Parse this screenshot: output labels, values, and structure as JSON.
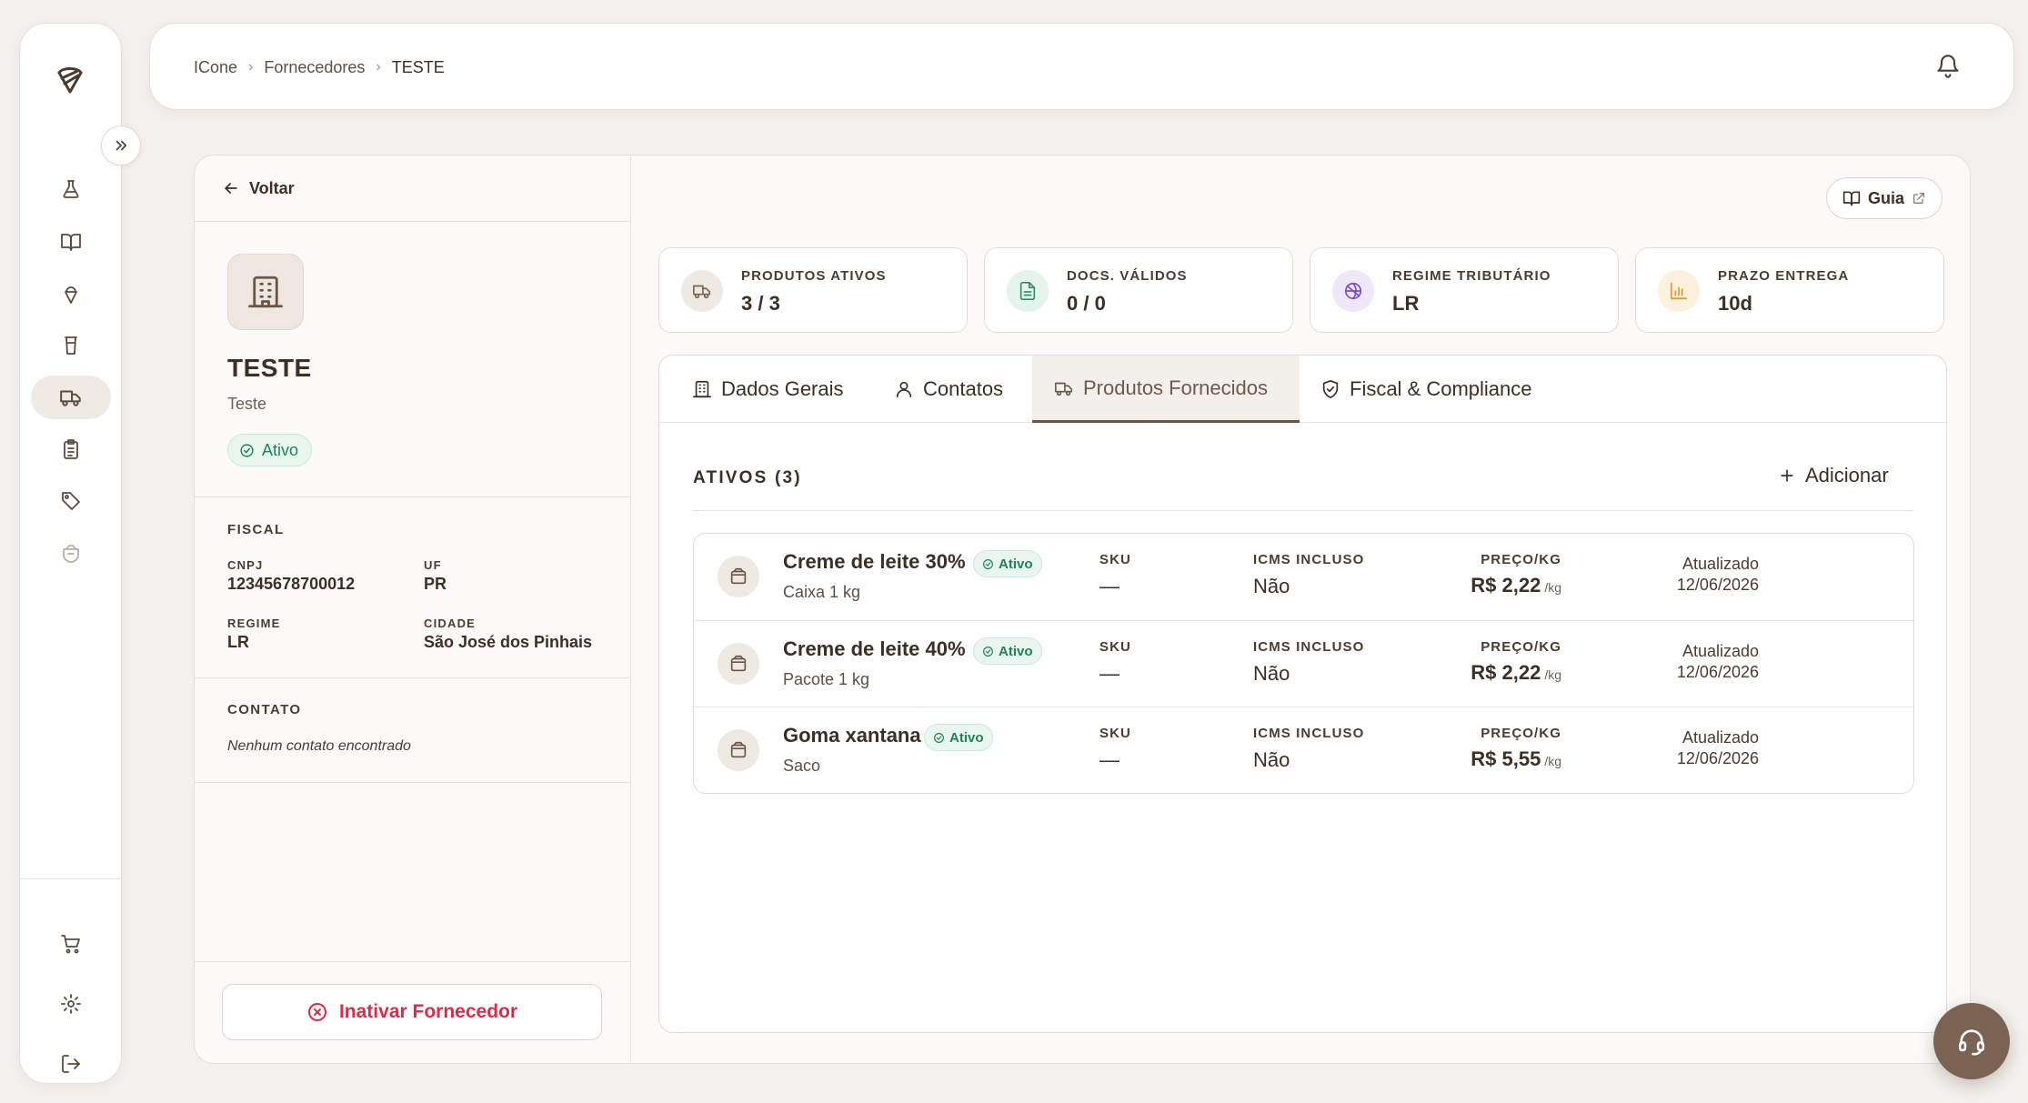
{
  "breadcrumb": {
    "items": [
      "ICone",
      "Fornecedores"
    ],
    "current": "TESTE"
  },
  "supplier": {
    "back_label": "Voltar",
    "name": "TESTE",
    "subtitle": "Teste",
    "status": "Ativo",
    "fiscal": {
      "title": "FISCAL",
      "cnpj_label": "CNPJ",
      "cnpj": "12345678700012",
      "uf_label": "UF",
      "uf": "PR",
      "regime_label": "REGIME",
      "regime": "LR",
      "cidade_label": "CIDADE",
      "cidade": "São José dos Pinhais"
    },
    "contato": {
      "title": "CONTATO",
      "empty": "Nenhum contato encontrado"
    },
    "inactivate_label": "Inativar Fornecedor"
  },
  "guide_label": "Guia",
  "kpis": [
    {
      "label": "PRODUTOS ATIVOS",
      "value": "3 / 3",
      "icon": "truck-icon",
      "color": "#7a6352"
    },
    {
      "label": "DOCS. VÁLIDOS",
      "value": "0 / 0",
      "icon": "document-icon",
      "color": "#2f8f62"
    },
    {
      "label": "REGIME TRIBUTÁRIO",
      "value": "LR",
      "icon": "globe-icon",
      "color": "#7b4bd6"
    },
    {
      "label": "PRAZO ENTREGA",
      "value": "10d",
      "icon": "bar-chart-icon",
      "color": "#d99a2b"
    }
  ],
  "tabs": [
    {
      "label": "Dados Gerais",
      "icon": "building-icon"
    },
    {
      "label": "Contatos",
      "icon": "user-icon"
    },
    {
      "label": "Produtos Fornecidos",
      "icon": "truck-icon",
      "active": true
    },
    {
      "label": "Fiscal & Compliance",
      "icon": "shield-check-icon"
    }
  ],
  "products": {
    "title": "ATIVOS (3)",
    "add_label": "Adicionar",
    "columns": {
      "sku": "SKU",
      "icms": "ICMS INCLUSO",
      "price": "PREÇO/KG"
    },
    "updated_label": "Atualizado",
    "price_unit": "/kg",
    "items": [
      {
        "name": "Creme de leite 30%",
        "badge": "Ativo",
        "unit": "Caixa 1 kg",
        "sku": "—",
        "icms": "Não",
        "price": "R$ 2,22",
        "updated": "12/06/2026"
      },
      {
        "name": "Creme de leite 40%",
        "badge": "Ativo",
        "unit": "Pacote 1 kg",
        "sku": "—",
        "icms": "Não",
        "price": "R$ 2,22",
        "updated": "12/06/2026"
      },
      {
        "name": "Goma xantana",
        "badge": "Ativo",
        "unit": "Saco",
        "sku": "—",
        "icms": "Não",
        "price": "R$ 5,55",
        "updated": "12/06/2026"
      }
    ]
  },
  "nav": [
    "logo-icon",
    "flask-icon",
    "book-icon",
    "ice-cream-icon",
    "cup-icon",
    "truck-icon",
    "clipboard-icon",
    "tag-icon",
    "box-icon",
    "cart-icon",
    "gear-icon",
    "logout-icon"
  ]
}
